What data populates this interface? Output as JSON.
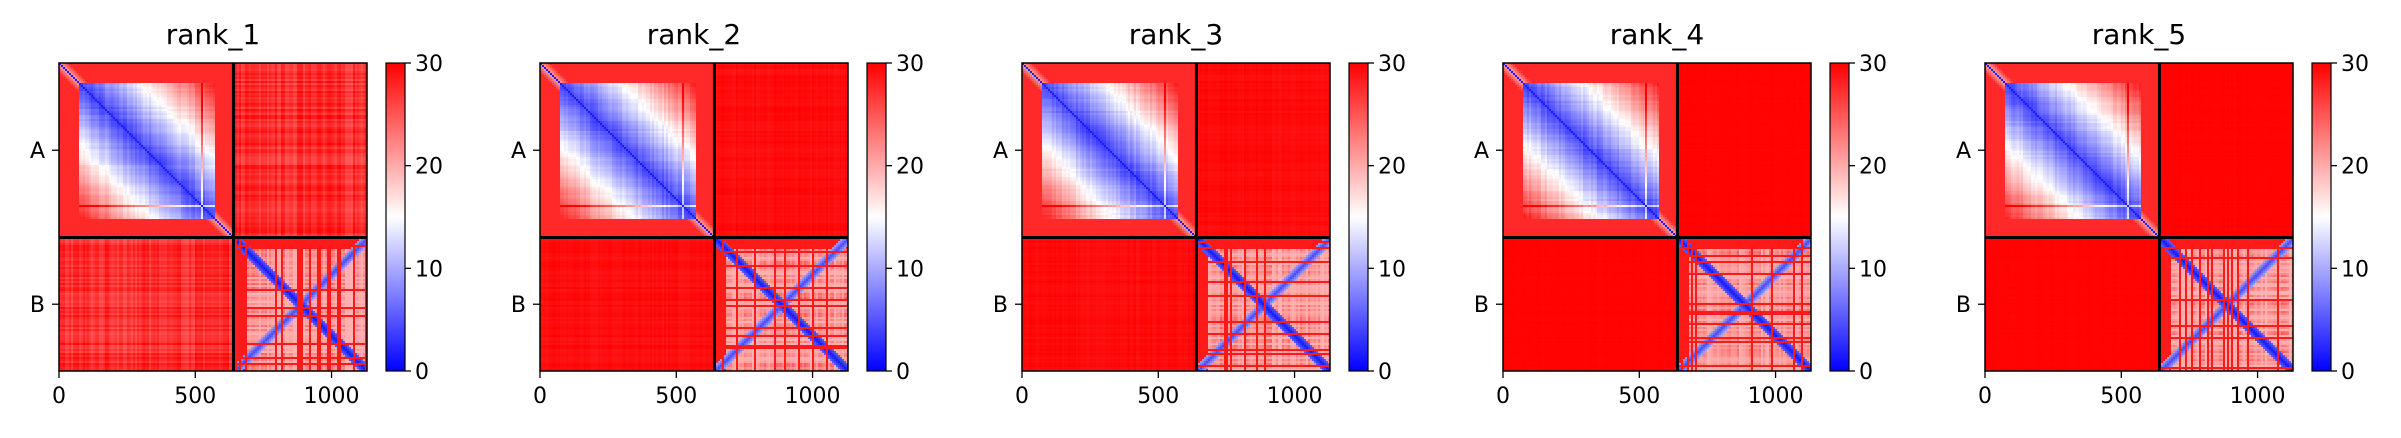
{
  "chart_data": [
    {
      "type": "heatmap",
      "title": "rank_1",
      "xticks": [
        0,
        500,
        1000
      ],
      "xlim": [
        0,
        1130
      ],
      "ylabels": [
        "A",
        "B"
      ],
      "boundary": 640,
      "offdiag_level": 0.82,
      "colorbar": {
        "ticks": [
          0,
          10,
          20,
          30
        ],
        "range": [
          0,
          30
        ],
        "colors": [
          "#0000ff",
          "#ffffff",
          "#ff0000"
        ]
      }
    },
    {
      "type": "heatmap",
      "title": "rank_2",
      "xticks": [
        0,
        500,
        1000
      ],
      "xlim": [
        0,
        1130
      ],
      "ylabels": [
        "A",
        "B"
      ],
      "boundary": 640,
      "offdiag_level": 0.95,
      "colorbar": {
        "ticks": [
          0,
          10,
          20,
          30
        ],
        "range": [
          0,
          30
        ],
        "colors": [
          "#0000ff",
          "#ffffff",
          "#ff0000"
        ]
      }
    },
    {
      "type": "heatmap",
      "title": "rank_3",
      "xticks": [
        0,
        500,
        1000
      ],
      "xlim": [
        0,
        1130
      ],
      "ylabels": [
        "A",
        "B"
      ],
      "boundary": 640,
      "offdiag_level": 0.96,
      "colorbar": {
        "ticks": [
          0,
          10,
          20,
          30
        ],
        "range": [
          0,
          30
        ],
        "colors": [
          "#0000ff",
          "#ffffff",
          "#ff0000"
        ]
      }
    },
    {
      "type": "heatmap",
      "title": "rank_4",
      "xticks": [
        0,
        500,
        1000
      ],
      "xlim": [
        0,
        1130
      ],
      "ylabels": [
        "A",
        "B"
      ],
      "boundary": 640,
      "offdiag_level": 0.99,
      "colorbar": {
        "ticks": [
          0,
          10,
          20,
          30
        ],
        "range": [
          0,
          30
        ],
        "colors": [
          "#0000ff",
          "#ffffff",
          "#ff0000"
        ]
      }
    },
    {
      "type": "heatmap",
      "title": "rank_5",
      "xticks": [
        0,
        500,
        1000
      ],
      "xlim": [
        0,
        1130
      ],
      "ylabels": [
        "A",
        "B"
      ],
      "boundary": 640,
      "offdiag_level": 0.99,
      "colorbar": {
        "ticks": [
          0,
          10,
          20,
          30
        ],
        "range": [
          0,
          30
        ],
        "colors": [
          "#0000ff",
          "#ffffff",
          "#ff0000"
        ]
      }
    }
  ]
}
